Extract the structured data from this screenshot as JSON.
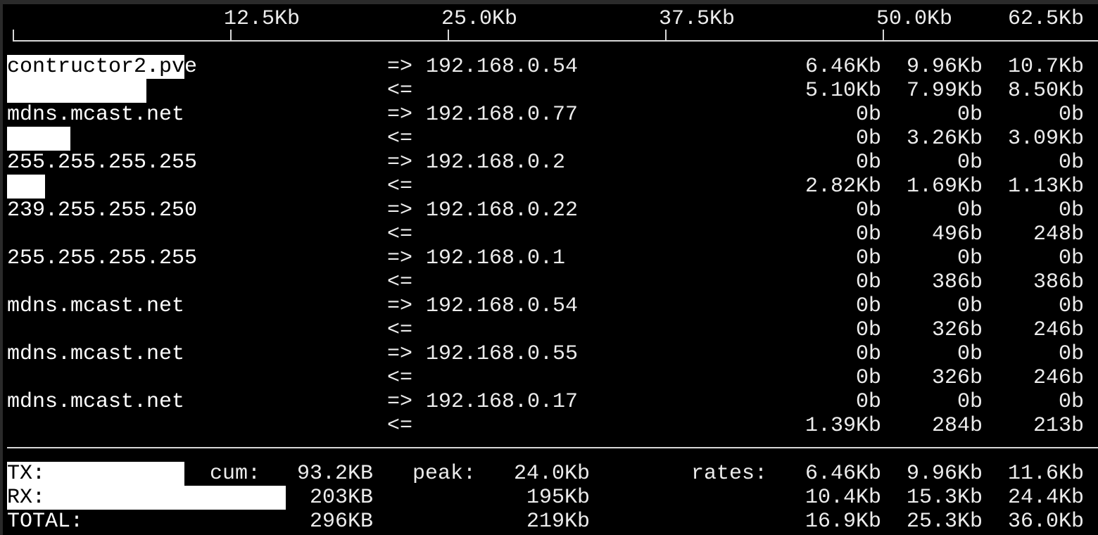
{
  "colors": {
    "background": "#000000",
    "text": "#ececec",
    "bar": "#ffffff",
    "window_frame": "#2a2a2a"
  },
  "scale": {
    "ticks": [
      "12.5Kb",
      "25.0Kb",
      "37.5Kb",
      "50.0Kb",
      "62.5Kb"
    ],
    "tick_values_kb": [
      12.5,
      25.0,
      37.5,
      50.0,
      62.5
    ]
  },
  "hosts": [
    {
      "host": "contructor2.pve",
      "dest": "192.168.0.54",
      "tx_rates": [
        "6.46Kb",
        "9.96Kb",
        "10.7Kb"
      ],
      "rx_rates": [
        "5.10Kb",
        "7.99Kb",
        "8.50Kb"
      ],
      "tx_bar_kb": 10.2,
      "rx_bar_kb": 8.0
    },
    {
      "host": "mdns.mcast.net",
      "dest": "192.168.0.77",
      "tx_rates": [
        "0b",
        "0b",
        "0b"
      ],
      "rx_rates": [
        "0b",
        "3.26Kb",
        "3.09Kb"
      ],
      "tx_bar_kb": 0,
      "rx_bar_kb": 3.64
    },
    {
      "host": "255.255.255.255",
      "dest": "192.168.0.2",
      "tx_rates": [
        "0b",
        "0b",
        "0b"
      ],
      "rx_rates": [
        "2.82Kb",
        "1.69Kb",
        "1.13Kb"
      ],
      "tx_bar_kb": 0,
      "rx_bar_kb": 2.18
    },
    {
      "host": "239.255.255.250",
      "dest": "192.168.0.22",
      "tx_rates": [
        "0b",
        "0b",
        "0b"
      ],
      "rx_rates": [
        "0b",
        "496b",
        "248b"
      ],
      "tx_bar_kb": 0,
      "rx_bar_kb": 0
    },
    {
      "host": "255.255.255.255",
      "dest": "192.168.0.1",
      "tx_rates": [
        "0b",
        "0b",
        "0b"
      ],
      "rx_rates": [
        "0b",
        "386b",
        "386b"
      ],
      "tx_bar_kb": 0,
      "rx_bar_kb": 0
    },
    {
      "host": "mdns.mcast.net",
      "dest": "192.168.0.54",
      "tx_rates": [
        "0b",
        "0b",
        "0b"
      ],
      "rx_rates": [
        "0b",
        "326b",
        "246b"
      ],
      "tx_bar_kb": 0,
      "rx_bar_kb": 0
    },
    {
      "host": "mdns.mcast.net",
      "dest": "192.168.0.55",
      "tx_rates": [
        "0b",
        "0b",
        "0b"
      ],
      "rx_rates": [
        "0b",
        "326b",
        "246b"
      ],
      "tx_bar_kb": 0,
      "rx_bar_kb": 0
    },
    {
      "host": "mdns.mcast.net",
      "dest": "192.168.0.17",
      "tx_rates": [
        "0b",
        "0b",
        "0b"
      ],
      "rx_rates": [
        "1.39Kb",
        "284b",
        "213b"
      ],
      "tx_bar_kb": 0,
      "rx_bar_kb": 0
    }
  ],
  "arrows": {
    "tx": "=>",
    "rx": "<="
  },
  "footer": {
    "labels": {
      "cum": "cum:",
      "peak": "peak:",
      "rates": "rates:"
    },
    "rows": [
      {
        "label": "TX:",
        "cum": "93.2KB",
        "peak": "24.0Kb",
        "rates": [
          "6.46Kb",
          "9.96Kb",
          "11.6Kb"
        ],
        "bar_kb": 10.2
      },
      {
        "label": "RX:",
        "cum": "203KB",
        "peak": "195Kb",
        "rates": [
          "10.4Kb",
          "15.3Kb",
          "24.4Kb"
        ],
        "bar_kb": 16.0
      },
      {
        "label": "TOTAL:",
        "cum": "296KB",
        "peak": "219Kb",
        "rates": [
          "16.9Kb",
          "25.3Kb",
          "36.0Kb"
        ],
        "bar_kb": 0
      }
    ]
  }
}
